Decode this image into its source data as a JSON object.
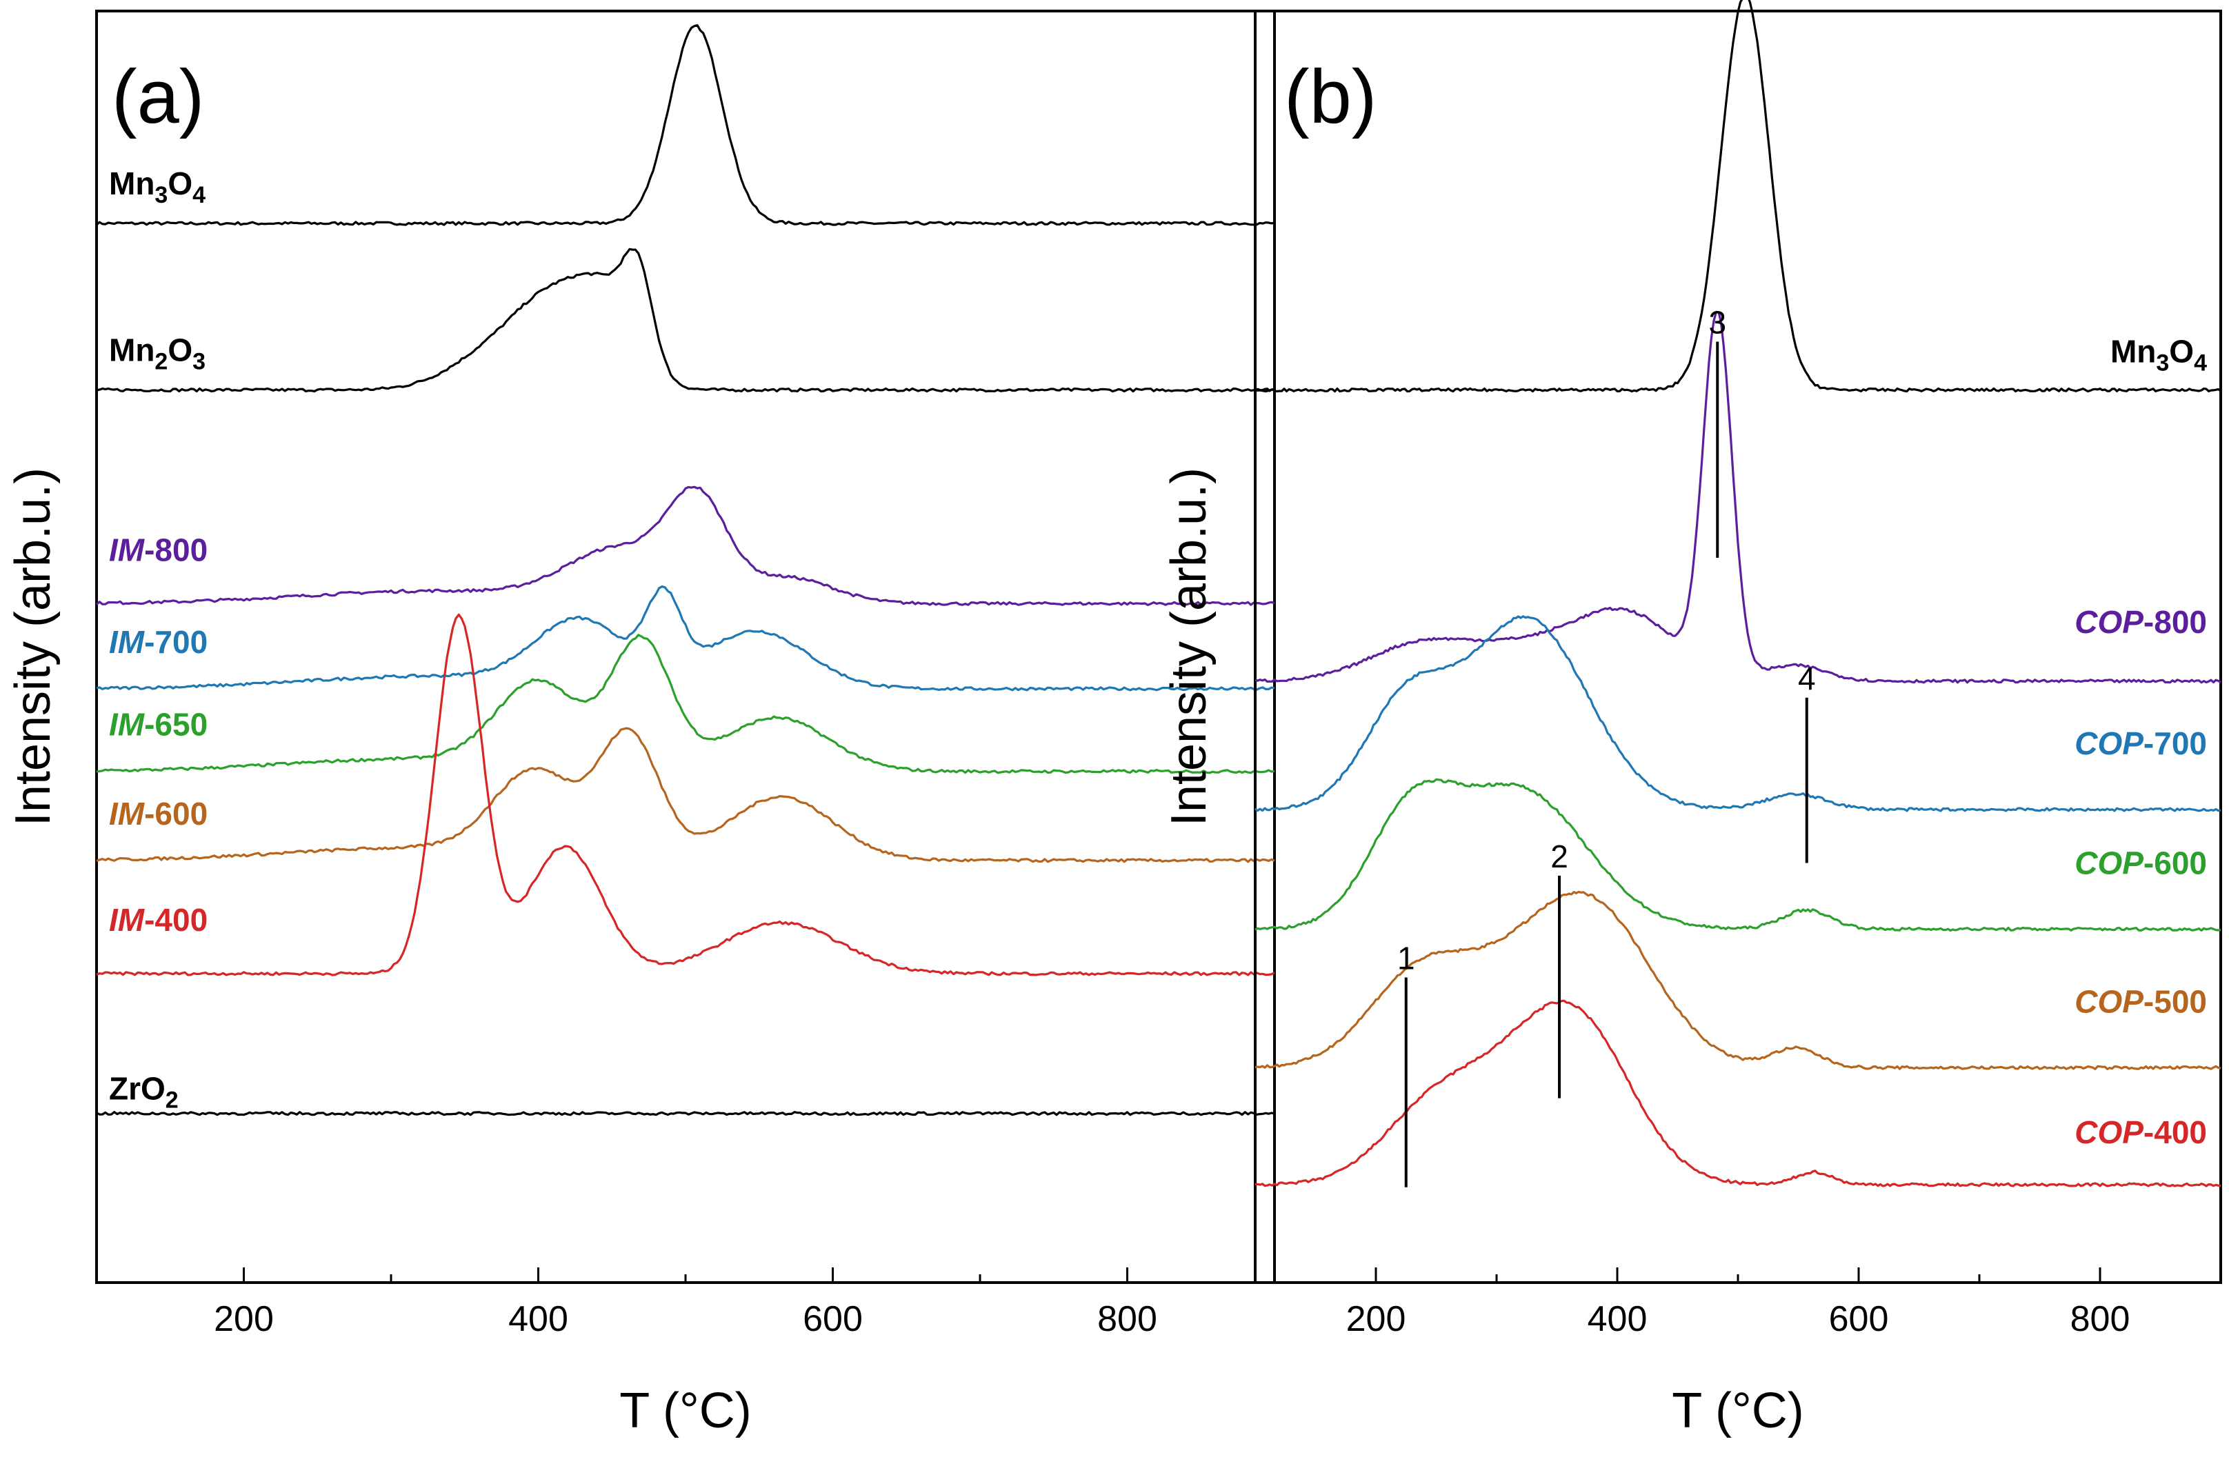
{
  "chart_data": [
    {
      "type": "line",
      "panel_label": "(a)",
      "xlabel": "T (°C)",
      "ylabel": "Intensity (arb.u.)",
      "xlim": [
        100,
        900
      ],
      "ylim": [
        0,
        100
      ],
      "x_ticks": [
        200,
        400,
        600,
        800
      ],
      "x_tick_labels": [
        "200",
        "400",
        "600",
        "800"
      ],
      "y_ticks_shown": false,
      "series": [
        {
          "name": "Mn3O4",
          "color": "#000000",
          "offset": 83.3,
          "label": {
            "prefix": "",
            "body": "Mn",
            "sub1": "3",
            "mid": "O",
            "sub2": "4"
          },
          "peaks": [
            {
              "center": 507,
              "height": 15.5,
              "width": 18
            }
          ]
        },
        {
          "name": "Mn2O3",
          "color": "#000000",
          "offset": 70.2,
          "label": {
            "prefix": "",
            "body": "Mn",
            "sub1": "2",
            "mid": "O",
            "sub2": "3"
          },
          "peaks": [
            {
              "center": 372,
              "height": 3.0,
              "width": 30
            },
            {
              "center": 412,
              "height": 6.0,
              "width": 25
            },
            {
              "center": 448,
              "height": 6.0,
              "width": 20
            },
            {
              "center": 468,
              "height": 6.5,
              "width": 10
            }
          ]
        },
        {
          "name": "IM-800",
          "color": "#5b1f9e",
          "offset": 53.4,
          "label": {
            "prefix": "IM",
            "body": "-800"
          },
          "peaks": [
            {
              "center": 330,
              "height": 1.0,
              "width": 90
            },
            {
              "center": 455,
              "height": 4.0,
              "width": 35
            },
            {
              "center": 508,
              "height": 7.5,
              "width": 20
            },
            {
              "center": 570,
              "height": 2.0,
              "width": 30
            }
          ]
        },
        {
          "name": "IM-700",
          "color": "#1f77b4",
          "offset": 46.7,
          "label": {
            "prefix": "IM",
            "body": "-700"
          },
          "peaks": [
            {
              "center": 330,
              "height": 1.0,
              "width": 90
            },
            {
              "center": 428,
              "height": 5.0,
              "width": 30
            },
            {
              "center": 485,
              "height": 6.0,
              "width": 12
            },
            {
              "center": 548,
              "height": 4.5,
              "width": 35
            }
          ]
        },
        {
          "name": "IM-650",
          "color": "#2ca02c",
          "offset": 40.2,
          "label": {
            "prefix": "IM",
            "body": "-650"
          },
          "peaks": [
            {
              "center": 320,
              "height": 1.0,
              "width": 90
            },
            {
              "center": 400,
              "height": 6.5,
              "width": 28
            },
            {
              "center": 470,
              "height": 10.0,
              "width": 20
            },
            {
              "center": 562,
              "height": 4.2,
              "width": 35
            }
          ]
        },
        {
          "name": "IM-600",
          "color": "#b5651d",
          "offset": 33.2,
          "label": {
            "prefix": "IM",
            "body": "-600"
          },
          "peaks": [
            {
              "center": 320,
              "height": 1.0,
              "width": 90
            },
            {
              "center": 398,
              "height": 6.5,
              "width": 28
            },
            {
              "center": 462,
              "height": 9.5,
              "width": 20
            },
            {
              "center": 565,
              "height": 5.0,
              "width": 35
            }
          ]
        },
        {
          "name": "IM-400",
          "color": "#d62728",
          "offset": 24.3,
          "label": {
            "prefix": "IM",
            "body": "-400"
          },
          "peaks": [
            {
              "center": 346,
              "height": 28.0,
              "width": 16
            },
            {
              "center": 418,
              "height": 10.0,
              "width": 25
            },
            {
              "center": 565,
              "height": 4.0,
              "width": 40
            }
          ]
        },
        {
          "name": "ZrO2",
          "color": "#000000",
          "offset": 13.3,
          "label": {
            "prefix": "",
            "body": "ZrO",
            "sub1": "2"
          },
          "peaks": []
        }
      ]
    },
    {
      "type": "line",
      "panel_label": "(b)",
      "xlabel": "T (°C)",
      "ylabel": "Intensity (arb.u.)",
      "xlim": [
        100,
        900
      ],
      "ylim": [
        0,
        100
      ],
      "x_ticks": [
        200,
        400,
        600,
        800
      ],
      "x_tick_labels": [
        "200",
        "400",
        "600",
        "800"
      ],
      "y_ticks_shown": false,
      "series": [
        {
          "name": "Mn3O4",
          "color": "#000000",
          "offset": 70.2,
          "label": {
            "prefix": "",
            "body": "Mn",
            "sub1": "3",
            "mid": "O",
            "sub2": "4"
          },
          "peaks": [
            {
              "center": 506,
              "height": 31.0,
              "width": 20
            }
          ]
        },
        {
          "name": "COP-800",
          "color": "#5b1f9e",
          "offset": 47.3,
          "label": {
            "prefix": "COP",
            "body": "-800"
          },
          "peaks": [
            {
              "center": 230,
              "height": 2.0,
              "width": 40
            },
            {
              "center": 330,
              "height": 3.0,
              "width": 70
            },
            {
              "center": 410,
              "height": 4.0,
              "width": 40
            },
            {
              "center": 483,
              "height": 28.0,
              "width": 12
            },
            {
              "center": 548,
              "height": 1.2,
              "width": 25
            }
          ]
        },
        {
          "name": "COP-700",
          "color": "#1f77b4",
          "offset": 37.2,
          "label": {
            "prefix": "COP",
            "body": "-700"
          },
          "peaks": [
            {
              "center": 225,
              "height": 8.0,
              "width": 35
            },
            {
              "center": 325,
              "height": 15.0,
              "width": 50
            },
            {
              "center": 548,
              "height": 1.2,
              "width": 25
            }
          ]
        },
        {
          "name": "COP-600",
          "color": "#2ca02c",
          "offset": 27.8,
          "label": {
            "prefix": "COP",
            "body": "-600"
          },
          "peaks": [
            {
              "center": 228,
              "height": 8.0,
              "width": 35
            },
            {
              "center": 318,
              "height": 11.0,
              "width": 55
            },
            {
              "center": 557,
              "height": 1.5,
              "width": 20
            }
          ]
        },
        {
          "name": "COP-500",
          "color": "#b5651d",
          "offset": 16.9,
          "label": {
            "prefix": "COP",
            "body": "-500"
          },
          "peaks": [
            {
              "center": 230,
              "height": 5.0,
              "width": 40
            },
            {
              "center": 300,
              "height": 6.0,
              "width": 60
            },
            {
              "center": 382,
              "height": 11.0,
              "width": 50
            },
            {
              "center": 548,
              "height": 1.5,
              "width": 20
            }
          ]
        },
        {
          "name": "COP-400",
          "color": "#d62728",
          "offset": 7.7,
          "label": {
            "prefix": "COP",
            "body": "-400"
          },
          "peaks": [
            {
              "center": 240,
              "height": 4.0,
              "width": 40
            },
            {
              "center": 300,
              "height": 6.0,
              "width": 50
            },
            {
              "center": 368,
              "height": 11.5,
              "width": 45
            },
            {
              "center": 563,
              "height": 1.0,
              "width": 15
            }
          ]
        }
      ],
      "annotations": [
        {
          "text": "1",
          "x": 225,
          "y_from": 7.5,
          "y_to": 24.0
        },
        {
          "text": "2",
          "x": 352,
          "y_from": 14.5,
          "y_to": 32.0
        },
        {
          "text": "3",
          "x": 483,
          "y_from": 57.0,
          "y_to": 74.0
        },
        {
          "text": "4",
          "x": 557,
          "y_from": 33.0,
          "y_to": 46.0
        }
      ]
    }
  ]
}
